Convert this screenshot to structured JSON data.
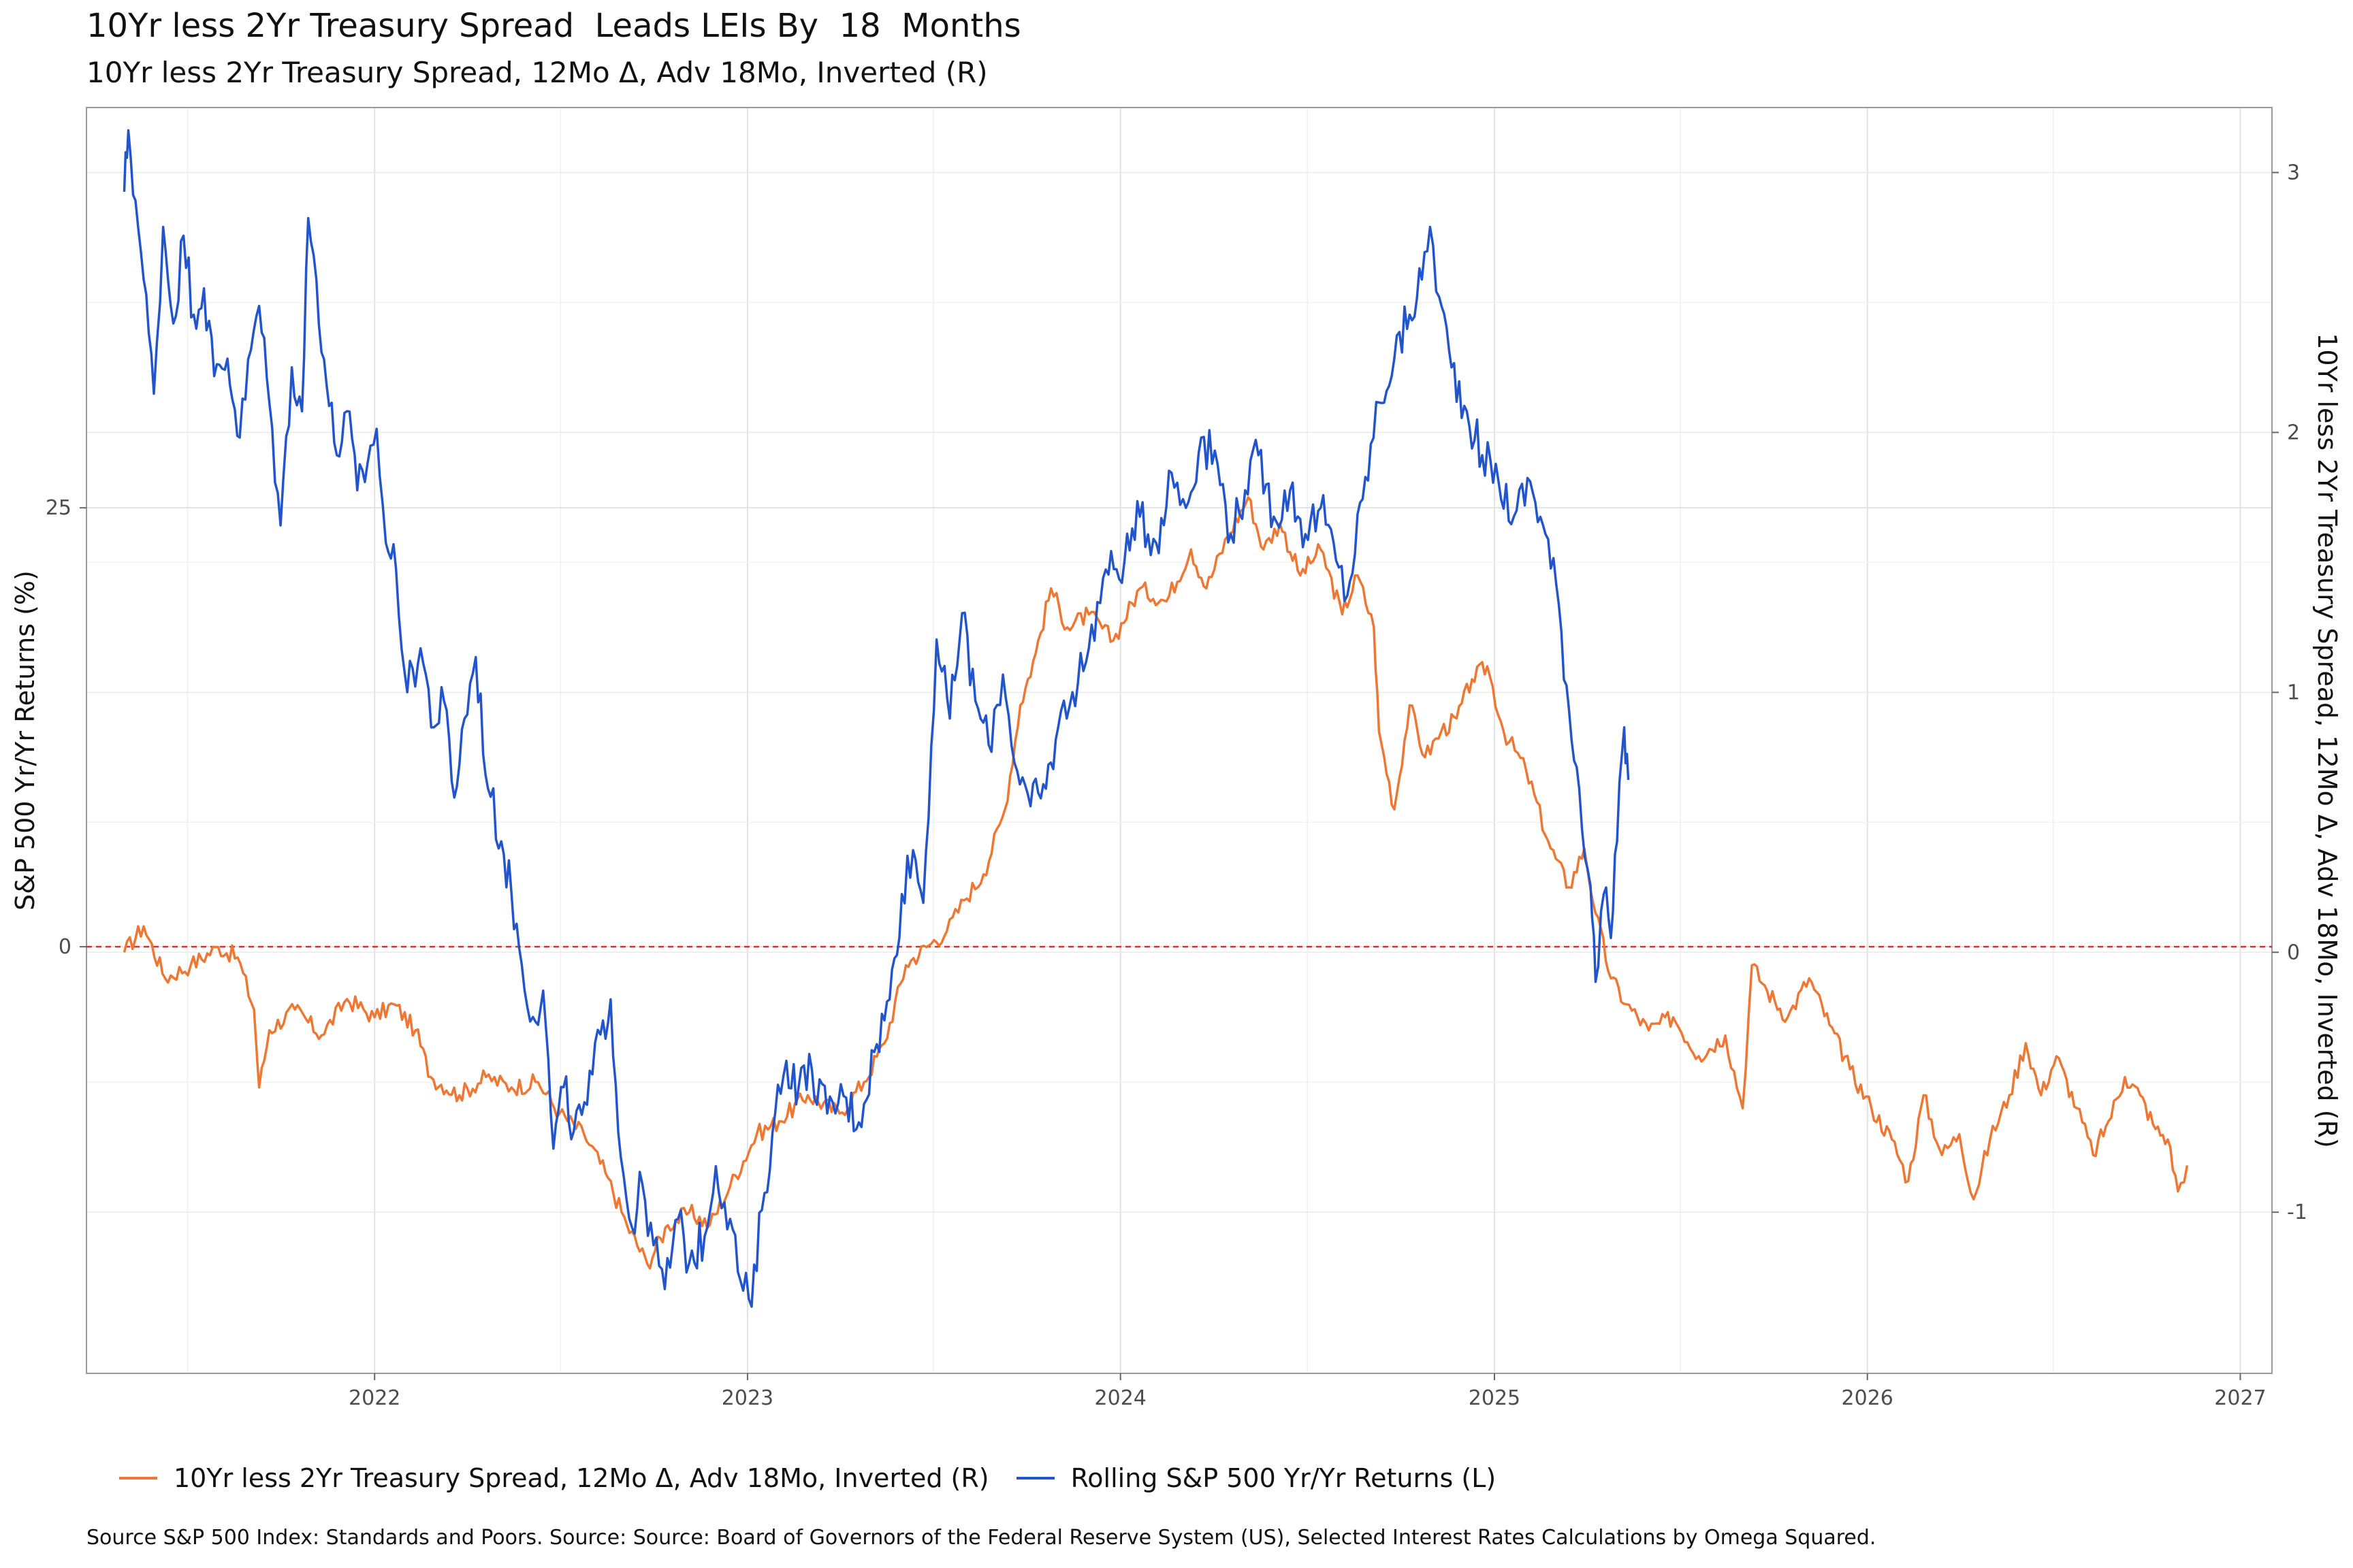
{
  "header": {
    "title": "10Yr less 2Yr Treasury Spread  Leads LEIs By  18  Months",
    "subtitle": "10Yr less 2Yr Treasury Spread, 12Mo Δ, Adv 18Mo, Inverted (R)"
  },
  "chart_data": {
    "type": "line",
    "ylabel_left": "S&P 500 Yr/Yr Returns (%)",
    "ylabel_right": "10Yr less 2Yr Treasury Spread, 12Mo Δ, Adv 18Mo, Inverted (R)",
    "x_ticks": [
      "2022",
      "2023",
      "2024",
      "2025",
      "2026",
      "2027"
    ],
    "y_left_ticks": [
      "0",
      "25"
    ],
    "y_right_ticks": [
      "-1",
      "0",
      "1",
      "2",
      "3"
    ],
    "xlim": [
      "2021-03-25",
      "2027-02-01"
    ],
    "ylim_left": [
      -24.3,
      47.8
    ],
    "ylim_right": [
      -1.62,
      3.25
    ],
    "reference_line": {
      "axis": "left",
      "value": 0,
      "style": "dashed",
      "color": "#cc3333"
    },
    "grid": true,
    "legend_position": "bottom",
    "series": [
      {
        "name": "10Yr less 2Yr Treasury Spread, 12Mo Δ, Adv 18Mo, Inverted (R)",
        "axis": "right",
        "color": "#EE7733",
        "points": [
          [
            "2021-05-01",
            0.0
          ],
          [
            "2021-05-20",
            0.1
          ],
          [
            "2021-06-10",
            -0.1
          ],
          [
            "2021-07-05",
            -0.05
          ],
          [
            "2021-08-01",
            0.02
          ],
          [
            "2021-08-20",
            -0.02
          ],
          [
            "2021-09-05",
            -0.22
          ],
          [
            "2021-09-10",
            -0.52
          ],
          [
            "2021-09-20",
            -0.3
          ],
          [
            "2021-10-15",
            -0.22
          ],
          [
            "2021-11-10",
            -0.32
          ],
          [
            "2021-12-05",
            -0.18
          ],
          [
            "2022-01-01",
            -0.25
          ],
          [
            "2022-01-20",
            -0.2
          ],
          [
            "2022-02-10",
            -0.3
          ],
          [
            "2022-02-25",
            -0.48
          ],
          [
            "2022-03-25",
            -0.55
          ],
          [
            "2022-04-20",
            -0.48
          ],
          [
            "2022-05-15",
            -0.52
          ],
          [
            "2022-06-10",
            -0.5
          ],
          [
            "2022-07-01",
            -0.62
          ],
          [
            "2022-07-25",
            -0.7
          ],
          [
            "2022-08-15",
            -0.85
          ],
          [
            "2022-09-05",
            -1.05
          ],
          [
            "2022-09-25",
            -1.2
          ],
          [
            "2022-10-15",
            -1.05
          ],
          [
            "2022-11-05",
            -1.0
          ],
          [
            "2022-11-25",
            -1.05
          ],
          [
            "2022-12-15",
            -0.9
          ],
          [
            "2023-01-10",
            -0.7
          ],
          [
            "2023-02-01",
            -0.65
          ],
          [
            "2023-03-01",
            -0.55
          ],
          [
            "2023-04-01",
            -0.62
          ],
          [
            "2023-04-25",
            -0.5
          ],
          [
            "2023-05-15",
            -0.35
          ],
          [
            "2023-06-05",
            -0.05
          ],
          [
            "2023-06-25",
            0.02
          ],
          [
            "2023-07-15",
            0.08
          ],
          [
            "2023-08-01",
            0.2
          ],
          [
            "2023-08-20",
            0.3
          ],
          [
            "2023-09-10",
            0.55
          ],
          [
            "2023-09-25",
            0.95
          ],
          [
            "2023-10-10",
            1.15
          ],
          [
            "2023-10-25",
            1.4
          ],
          [
            "2023-11-10",
            1.25
          ],
          [
            "2023-12-01",
            1.3
          ],
          [
            "2023-12-25",
            1.2
          ],
          [
            "2024-01-20",
            1.4
          ],
          [
            "2024-02-15",
            1.35
          ],
          [
            "2024-03-10",
            1.55
          ],
          [
            "2024-03-25",
            1.4
          ],
          [
            "2024-04-15",
            1.6
          ],
          [
            "2024-05-05",
            1.75
          ],
          [
            "2024-05-20",
            1.55
          ],
          [
            "2024-06-05",
            1.65
          ],
          [
            "2024-06-25",
            1.45
          ],
          [
            "2024-07-15",
            1.55
          ],
          [
            "2024-08-05",
            1.3
          ],
          [
            "2024-08-20",
            1.45
          ],
          [
            "2024-09-05",
            1.25
          ],
          [
            "2024-09-10",
            0.85
          ],
          [
            "2024-09-25",
            0.55
          ],
          [
            "2024-10-10",
            0.95
          ],
          [
            "2024-10-25",
            0.75
          ],
          [
            "2024-11-10",
            0.85
          ],
          [
            "2024-11-25",
            0.9
          ],
          [
            "2024-12-10",
            1.05
          ],
          [
            "2024-12-25",
            1.1
          ],
          [
            "2025-01-10",
            0.85
          ],
          [
            "2025-02-01",
            0.7
          ],
          [
            "2025-02-25",
            0.4
          ],
          [
            "2025-03-15",
            0.25
          ],
          [
            "2025-03-30",
            0.4
          ],
          [
            "2025-04-10",
            0.15
          ],
          [
            "2025-04-25",
            -0.1
          ],
          [
            "2025-05-10",
            -0.2
          ],
          [
            "2025-06-01",
            -0.3
          ],
          [
            "2025-06-25",
            -0.25
          ],
          [
            "2025-07-20",
            -0.4
          ],
          [
            "2025-08-15",
            -0.32
          ],
          [
            "2025-09-01",
            -0.6
          ],
          [
            "2025-09-10",
            -0.05
          ],
          [
            "2025-09-25",
            -0.15
          ],
          [
            "2025-10-15",
            -0.25
          ],
          [
            "2025-11-05",
            -0.1
          ],
          [
            "2025-11-25",
            -0.28
          ],
          [
            "2025-12-15",
            -0.45
          ],
          [
            "2026-01-05",
            -0.6
          ],
          [
            "2026-01-25",
            -0.72
          ],
          [
            "2026-02-10",
            -0.88
          ],
          [
            "2026-02-25",
            -0.55
          ],
          [
            "2026-03-15",
            -0.78
          ],
          [
            "2026-04-01",
            -0.7
          ],
          [
            "2026-04-15",
            -0.95
          ],
          [
            "2026-05-01",
            -0.72
          ],
          [
            "2026-05-20",
            -0.55
          ],
          [
            "2026-06-05",
            -0.35
          ],
          [
            "2026-06-20",
            -0.55
          ],
          [
            "2026-07-05",
            -0.4
          ],
          [
            "2026-07-25",
            -0.6
          ],
          [
            "2026-08-10",
            -0.78
          ],
          [
            "2026-08-25",
            -0.65
          ],
          [
            "2026-09-10",
            -0.48
          ],
          [
            "2026-09-25",
            -0.55
          ],
          [
            "2026-10-10",
            -0.68
          ],
          [
            "2026-10-22",
            -0.72
          ],
          [
            "2026-11-01",
            -0.92
          ],
          [
            "2026-11-10",
            -0.82
          ]
        ]
      },
      {
        "name": "Rolling S&P 500 Yr/Yr Returns (L)",
        "axis": "left",
        "color": "#2255CC",
        "points": [
          [
            "2021-05-01",
            43.0
          ],
          [
            "2021-05-05",
            46.5
          ],
          [
            "2021-05-12",
            42.5
          ],
          [
            "2021-05-20",
            38.0
          ],
          [
            "2021-05-30",
            31.5
          ],
          [
            "2021-06-08",
            41.0
          ],
          [
            "2021-06-18",
            35.5
          ],
          [
            "2021-06-28",
            40.5
          ],
          [
            "2021-07-08",
            36.0
          ],
          [
            "2021-07-18",
            37.5
          ],
          [
            "2021-07-28",
            32.5
          ],
          [
            "2021-08-10",
            33.5
          ],
          [
            "2021-08-22",
            29.0
          ],
          [
            "2021-09-02",
            34.0
          ],
          [
            "2021-09-10",
            36.5
          ],
          [
            "2021-09-20",
            31.0
          ],
          [
            "2021-10-01",
            24.0
          ],
          [
            "2021-10-12",
            33.0
          ],
          [
            "2021-10-22",
            30.5
          ],
          [
            "2021-10-28",
            41.5
          ],
          [
            "2021-11-05",
            38.0
          ],
          [
            "2021-11-15",
            32.0
          ],
          [
            "2021-11-25",
            28.0
          ],
          [
            "2021-12-05",
            30.5
          ],
          [
            "2021-12-15",
            26.0
          ],
          [
            "2021-12-25",
            27.5
          ],
          [
            "2022-01-03",
            29.5
          ],
          [
            "2022-01-12",
            23.0
          ],
          [
            "2022-01-22",
            21.5
          ],
          [
            "2022-02-02",
            14.5
          ],
          [
            "2022-02-15",
            17.0
          ],
          [
            "2022-02-28",
            12.5
          ],
          [
            "2022-03-10",
            14.0
          ],
          [
            "2022-03-20",
            8.5
          ],
          [
            "2022-03-30",
            13.0
          ],
          [
            "2022-04-10",
            16.5
          ],
          [
            "2022-04-22",
            9.0
          ],
          [
            "2022-05-05",
            6.0
          ],
          [
            "2022-05-15",
            3.0
          ],
          [
            "2022-05-25",
            -1.0
          ],
          [
            "2022-06-05",
            -4.0
          ],
          [
            "2022-06-15",
            -2.5
          ],
          [
            "2022-06-25",
            -11.5
          ],
          [
            "2022-07-05",
            -8.0
          ],
          [
            "2022-07-15",
            -10.5
          ],
          [
            "2022-07-28",
            -9.0
          ],
          [
            "2022-08-10",
            -5.0
          ],
          [
            "2022-08-20",
            -3.0
          ],
          [
            "2022-08-30",
            -12.0
          ],
          [
            "2022-09-10",
            -16.0
          ],
          [
            "2022-09-20",
            -13.5
          ],
          [
            "2022-10-01",
            -17.0
          ],
          [
            "2022-10-12",
            -19.5
          ],
          [
            "2022-10-25",
            -15.5
          ],
          [
            "2022-11-05",
            -18.0
          ],
          [
            "2022-11-20",
            -16.5
          ],
          [
            "2022-12-01",
            -12.5
          ],
          [
            "2022-12-15",
            -15.5
          ],
          [
            "2022-12-25",
            -19.0
          ],
          [
            "2023-01-05",
            -20.5
          ],
          [
            "2023-01-15",
            -15.0
          ],
          [
            "2023-01-28",
            -9.5
          ],
          [
            "2023-02-08",
            -6.5
          ],
          [
            "2023-02-20",
            -8.0
          ],
          [
            "2023-03-05",
            -7.0
          ],
          [
            "2023-03-20",
            -9.5
          ],
          [
            "2023-04-05",
            -8.5
          ],
          [
            "2023-04-20",
            -10.0
          ],
          [
            "2023-05-05",
            -6.0
          ],
          [
            "2023-05-20",
            -3.0
          ],
          [
            "2023-06-01",
            3.0
          ],
          [
            "2023-06-12",
            5.5
          ],
          [
            "2023-06-22",
            2.5
          ],
          [
            "2023-07-05",
            17.5
          ],
          [
            "2023-07-18",
            13.0
          ],
          [
            "2023-07-30",
            19.0
          ],
          [
            "2023-08-12",
            14.0
          ],
          [
            "2023-08-25",
            11.5
          ],
          [
            "2023-09-08",
            15.5
          ],
          [
            "2023-09-22",
            10.0
          ],
          [
            "2023-10-05",
            8.0
          ],
          [
            "2023-10-20",
            9.0
          ],
          [
            "2023-11-01",
            12.5
          ],
          [
            "2023-11-15",
            14.5
          ],
          [
            "2023-12-01",
            17.0
          ],
          [
            "2023-12-15",
            21.0
          ],
          [
            "2024-01-05",
            22.0
          ],
          [
            "2024-01-20",
            24.5
          ],
          [
            "2024-02-05",
            23.0
          ],
          [
            "2024-02-20",
            27.0
          ],
          [
            "2024-03-05",
            25.0
          ],
          [
            "2024-03-20",
            29.0
          ],
          [
            "2024-04-05",
            27.5
          ],
          [
            "2024-04-18",
            23.5
          ],
          [
            "2024-05-02",
            26.0
          ],
          [
            "2024-05-15",
            28.0
          ],
          [
            "2024-05-30",
            24.5
          ],
          [
            "2024-06-15",
            26.0
          ],
          [
            "2024-06-30",
            23.5
          ],
          [
            "2024-07-15",
            25.0
          ],
          [
            "2024-07-30",
            22.0
          ],
          [
            "2024-08-10",
            20.0
          ],
          [
            "2024-08-25",
            25.5
          ],
          [
            "2024-09-10",
            31.0
          ],
          [
            "2024-09-25",
            33.5
          ],
          [
            "2024-10-10",
            36.0
          ],
          [
            "2024-10-22",
            38.0
          ],
          [
            "2024-10-30",
            41.0
          ],
          [
            "2024-11-08",
            37.0
          ],
          [
            "2024-11-20",
            33.0
          ],
          [
            "2024-12-05",
            30.5
          ],
          [
            "2024-12-20",
            28.0
          ],
          [
            "2025-01-05",
            26.5
          ],
          [
            "2025-01-20",
            24.5
          ],
          [
            "2025-02-05",
            26.5
          ],
          [
            "2025-02-20",
            23.5
          ],
          [
            "2025-03-05",
            19.5
          ],
          [
            "2025-03-15",
            13.5
          ],
          [
            "2025-03-25",
            9.0
          ],
          [
            "2025-04-05",
            3.5
          ],
          [
            "2025-04-10",
            -2.0
          ],
          [
            "2025-04-18",
            3.0
          ],
          [
            "2025-04-25",
            0.5
          ],
          [
            "2025-05-01",
            6.0
          ],
          [
            "2025-05-08",
            12.5
          ],
          [
            "2025-05-12",
            9.5
          ]
        ]
      }
    ]
  },
  "legend": {
    "items": [
      {
        "label": "10Yr less 2Yr Treasury Spread, 12Mo Δ, Adv 18Mo, Inverted (R)",
        "color": "#EE7733"
      },
      {
        "label": "Rolling S&P 500 Yr/Yr Returns (L)",
        "color": "#2255CC"
      }
    ]
  },
  "footer": {
    "source": "Source S&P 500 Index: Standards and Poors. Source: Source: Board of Governors of the Federal Reserve System (US), Selected Interest Rates Calculations by Omega Squared."
  }
}
